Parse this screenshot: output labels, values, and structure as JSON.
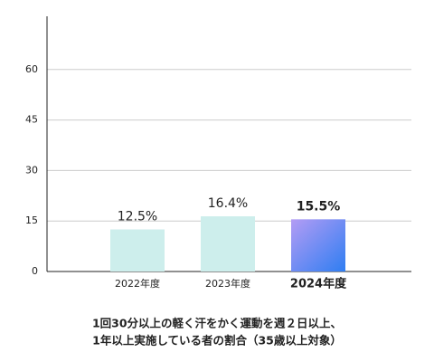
{
  "chart_data": {
    "type": "bar",
    "caption": [
      "1回30分以上の軽く汗をかく運動を週２日以上、",
      "1年以上実施している者の割合（35歳以上対象）"
    ],
    "categories": [
      "2022年度",
      "2023年度",
      "2024年度"
    ],
    "values": [
      12.5,
      16.4,
      15.5
    ],
    "value_labels": [
      "12.5%",
      "16.4%",
      "15.5%"
    ],
    "colors": [
      "#cdeeec",
      "#cdeeec",
      "#2f7ef2"
    ],
    "ylim": [
      0,
      75
    ],
    "yticks": [
      0,
      15,
      30,
      45,
      60
    ],
    "grid": true
  }
}
